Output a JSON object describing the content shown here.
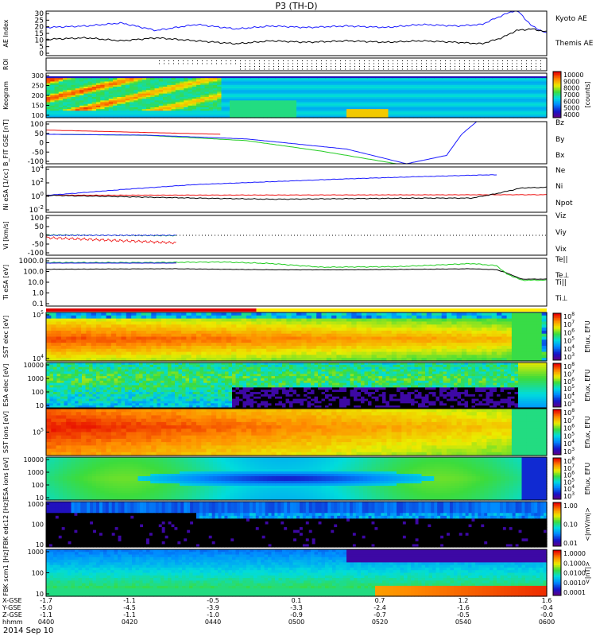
{
  "title": "P3 (TH-D)",
  "date": "2014 Sep 10",
  "colors": {
    "blue": "#1a1aff",
    "green": "#22cc22",
    "red": "#ee1111",
    "black": "#000000"
  },
  "chart_data": [
    {
      "type": "line",
      "panel": "ae",
      "ylabel": "AE Index",
      "yticks": [
        "30",
        "25",
        "20",
        "15",
        "10",
        "5",
        "0"
      ],
      "ylim": [
        0,
        30
      ],
      "series": [
        {
          "name": "Kyoto AE",
          "color": "blue",
          "x": [
            0,
            0.08,
            0.15,
            0.22,
            0.3,
            0.38,
            0.45,
            0.52,
            0.6,
            0.68,
            0.75,
            0.82,
            0.87,
            0.91,
            0.94,
            0.97,
            1.0
          ],
          "y": [
            19,
            20,
            22,
            17,
            21,
            18,
            20,
            19,
            20,
            19,
            21,
            20,
            21,
            27,
            31,
            20,
            15
          ]
        },
        {
          "name": "Themis AE",
          "color": "black",
          "x": [
            0,
            0.08,
            0.15,
            0.22,
            0.3,
            0.38,
            0.45,
            0.52,
            0.6,
            0.68,
            0.75,
            0.82,
            0.87,
            0.91,
            0.94,
            0.97,
            1.0
          ],
          "y": [
            11,
            12,
            10,
            12,
            10,
            8,
            10,
            9,
            10,
            9,
            10,
            9,
            8,
            12,
            17,
            18,
            16
          ]
        }
      ]
    },
    {
      "type": "heatmap",
      "panel": "roi",
      "ylabel": "ROI"
    },
    {
      "type": "heatmap",
      "panel": "keogram",
      "ylabel": "Keogram",
      "yticks": [
        "300",
        "250",
        "200",
        "150",
        "100"
      ],
      "colorbar": {
        "ticks": [
          "10000",
          "9000",
          "8000",
          "7000",
          "6000",
          "5000",
          "4000"
        ],
        "label": "[counts]"
      }
    },
    {
      "type": "line",
      "panel": "bfit",
      "ylabel": "B_FIT GSE [nT]",
      "yticks": [
        "100",
        "50",
        "0",
        "-50",
        "-100"
      ],
      "ylim": [
        -100,
        100
      ],
      "series": [
        {
          "name": "Bz",
          "color": "red",
          "x": [
            0,
            0.35
          ],
          "y": [
            60,
            40
          ]
        },
        {
          "name": "By",
          "color": "green",
          "x": [
            0,
            0.2,
            0.4,
            0.55,
            0.7
          ],
          "y": [
            40,
            35,
            10,
            -40,
            -100
          ]
        },
        {
          "name": "Bx",
          "color": "blue",
          "x": [
            0,
            0.2,
            0.4,
            0.6,
            0.72,
            0.8,
            0.83,
            0.86
          ],
          "y": [
            40,
            36,
            18,
            -30,
            -100,
            -60,
            40,
            100
          ]
        }
      ]
    },
    {
      "type": "line",
      "panel": "ni",
      "ylabel": "Ni eSA [1/cc]",
      "yticks": [
        "10^4",
        "10^2",
        "10^0",
        "10^-2"
      ],
      "series": [
        {
          "name": "Ne",
          "color": "red",
          "x": [
            0,
            1
          ],
          "y": [
            0,
            0.1
          ]
        },
        {
          "name": "Ni",
          "color": "blue",
          "x": [
            0,
            0.05,
            0.15,
            0.3,
            0.45,
            0.6,
            0.75,
            0.88,
            0.9
          ],
          "y": [
            0,
            0.3,
            1.0,
            1.9,
            2.4,
            2.9,
            3.3,
            3.6,
            3.6
          ]
        },
        {
          "name": "Npot",
          "color": "black",
          "x": [
            0,
            0.3,
            0.45,
            0.6,
            0.75,
            0.85,
            0.9,
            0.95,
            1.0
          ],
          "y": [
            0,
            -0.5,
            -0.7,
            -0.6,
            -0.5,
            -0.5,
            0.3,
            1.3,
            1.4
          ]
        }
      ]
    },
    {
      "type": "line",
      "panel": "vi",
      "ylabel": "Vi [km/s]",
      "yticks": [
        "100",
        "50",
        "0",
        "-50",
        "-100"
      ],
      "ylim": [
        -100,
        100
      ],
      "series": [
        {
          "name": "Viz",
          "color": "red",
          "x": [
            0,
            0.13,
            0.26
          ],
          "y": [
            -12,
            -25,
            -38
          ]
        },
        {
          "name": "Viy",
          "color": "green",
          "x": [
            0,
            0.13,
            0.26
          ],
          "y": [
            2,
            0,
            -2
          ]
        },
        {
          "name": "Vix",
          "color": "blue",
          "x": [
            0,
            0.26
          ],
          "y": [
            0,
            0
          ]
        }
      ]
    },
    {
      "type": "line",
      "panel": "ti",
      "ylabel": "Ti eSA [eV]",
      "yticks": [
        "1000.0",
        "100.0",
        "10.0",
        "1.0",
        "0.1"
      ],
      "series": [
        {
          "name": "Te||",
          "color": "black",
          "x": [
            0,
            0.25,
            0.45,
            0.6,
            0.75,
            0.85,
            0.9,
            0.92,
            0.95,
            1.0
          ],
          "y": [
            2.35,
            2.4,
            2.3,
            2.3,
            2.35,
            2.4,
            2.3,
            2.0,
            1.4,
            1.4
          ]
        },
        {
          "name": "Te⊥",
          "color": "red",
          "x": [
            0,
            0.26
          ],
          "y": [
            2.95,
            2.95
          ]
        },
        {
          "name": "Ti||",
          "color": "green",
          "x": [
            0,
            0.2,
            0.35,
            0.45,
            0.55,
            0.7,
            0.85,
            0.9,
            0.92,
            0.95,
            1.0
          ],
          "y": [
            3.0,
            3.0,
            3.05,
            2.9,
            2.55,
            2.6,
            2.9,
            2.7,
            1.9,
            1.3,
            1.3
          ]
        },
        {
          "name": "Ti⊥",
          "color": "blue",
          "x": [
            0,
            0.26
          ],
          "y": [
            2.95,
            2.95
          ]
        }
      ]
    },
    {
      "type": "heatmap",
      "panel": "sst_e",
      "ylabel": "SST elec [eV]",
      "yticks": [
        "10^5",
        "10^4"
      ],
      "colorbar": {
        "ticks": [
          "10^8",
          "10^7",
          "10^6",
          "10^5",
          "10^4",
          "10^3"
        ],
        "label": "Eflux, EFU"
      }
    },
    {
      "type": "heatmap",
      "panel": "esa_e",
      "ylabel": "ESA elec [eV]",
      "yticks": [
        "10000",
        "1000",
        "100",
        "10"
      ],
      "colorbar": {
        "ticks": [
          "10^8",
          "10^7",
          "10^6",
          "10^5",
          "10^4",
          "10^3"
        ],
        "label": "Eflux, EFU"
      }
    },
    {
      "type": "heatmap",
      "panel": "sst_i",
      "ylabel": "SST ions [eV]",
      "yticks": [
        "10^5"
      ],
      "colorbar": {
        "ticks": [
          "10^8",
          "10^7",
          "10^6",
          "10^5",
          "10^4",
          "10^3"
        ],
        "label": "Eflux, EFU"
      }
    },
    {
      "type": "heatmap",
      "panel": "esa_i",
      "ylabel": "ESA ions [eV]",
      "yticks": [
        "10000",
        "1000",
        "100",
        "10"
      ],
      "colorbar": {
        "ticks": [
          "10^8",
          "10^7",
          "10^6",
          "10^5",
          "10^4",
          "10^3"
        ],
        "label": "Eflux, EFU"
      }
    },
    {
      "type": "heatmap",
      "panel": "fbk_e",
      "ylabel": "FBK edc12 [Hz]",
      "yticks": [
        "1000",
        "100",
        "10"
      ],
      "colorbar": {
        "ticks": [
          "1.00",
          "0.10",
          "0.01"
        ],
        "label": "<|mV/m|>"
      }
    },
    {
      "type": "heatmap",
      "panel": "fbk_b",
      "ylabel": "FBK scm1 [Hz]",
      "yticks": [
        "1000",
        "100",
        "10"
      ],
      "colorbar": {
        "ticks": [
          "1.0000",
          "0.1000",
          "0.0100",
          "0.0010",
          "0.0001"
        ],
        "label": "<|nT|>"
      }
    }
  ],
  "time_axis": {
    "rows": [
      {
        "label": "X-GSE",
        "values": [
          "-1.7",
          "-1.1",
          "-0.5",
          "0.1",
          "0.7",
          "1.2",
          "1.6"
        ]
      },
      {
        "label": "Y-GSE",
        "values": [
          "-5.0",
          "-4.5",
          "-3.9",
          "-3.3",
          "-2.4",
          "-1.6",
          "-0.4"
        ]
      },
      {
        "label": "Z-GSE",
        "values": [
          "-1.1",
          "-1.1",
          "-1.0",
          "-0.9",
          "-0.7",
          "-0.5",
          "-0.0"
        ]
      },
      {
        "label": "hhmm",
        "values": [
          "0400",
          "0420",
          "0440",
          "0500",
          "0520",
          "0540",
          "0600"
        ]
      }
    ]
  }
}
